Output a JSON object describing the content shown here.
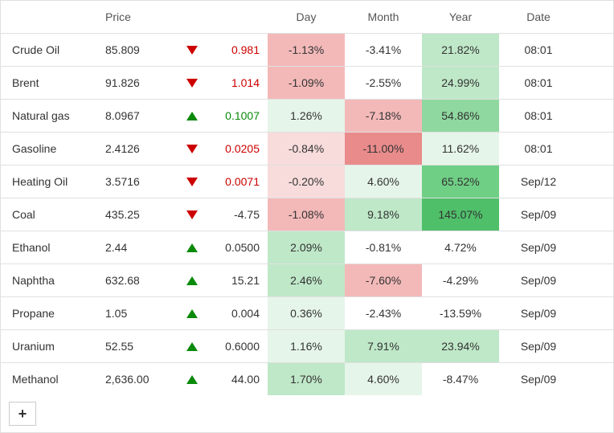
{
  "colors": {
    "green_text": "#0a8a0a",
    "red_text": "#c00",
    "neutral_text": "#333333",
    "border": "#e0e0e0",
    "green_bg_light": "#e6f5e9",
    "green_bg_mid": "#bfe8c8",
    "green_bg_strong": "#8fd89f",
    "green_bg_max": "#4fbf6a",
    "red_bg_light": "#f8dcdc",
    "red_bg_mid": "#f3b9b9",
    "red_bg_strong": "#e98b8b",
    "white": "#ffffff"
  },
  "header": {
    "price": "Price",
    "day": "Day",
    "month": "Month",
    "year": "Year",
    "date": "Date"
  },
  "add_label": "+",
  "rows": [
    {
      "name": "Crude Oil",
      "price": "85.809",
      "dir": "down",
      "change": "0.981",
      "change_color": "#c00",
      "day": "-1.13%",
      "day_bg": "#f3b9b9",
      "month": "-3.41%",
      "month_bg": "#ffffff",
      "year": "21.82%",
      "year_bg": "#bfe8c8",
      "date": "08:01"
    },
    {
      "name": "Brent",
      "price": "91.826",
      "dir": "down",
      "change": "1.014",
      "change_color": "#c00",
      "day": "-1.09%",
      "day_bg": "#f3b9b9",
      "month": "-2.55%",
      "month_bg": "#ffffff",
      "year": "24.99%",
      "year_bg": "#bfe8c8",
      "date": "08:01"
    },
    {
      "name": "Natural gas",
      "price": "8.0967",
      "dir": "up",
      "change": "0.1007",
      "change_color": "#0a8a0a",
      "day": "1.26%",
      "day_bg": "#e6f5e9",
      "month": "-7.18%",
      "month_bg": "#f3b9b9",
      "year": "54.86%",
      "year_bg": "#8fd89f",
      "date": "08:01"
    },
    {
      "name": "Gasoline",
      "price": "2.4126",
      "dir": "down",
      "change": "0.0205",
      "change_color": "#c00",
      "day": "-0.84%",
      "day_bg": "#f8dcdc",
      "month": "-11.00%",
      "month_bg": "#e98b8b",
      "year": "11.62%",
      "year_bg": "#e6f5e9",
      "date": "08:01"
    },
    {
      "name": "Heating Oil",
      "price": "3.5716",
      "dir": "down",
      "change": "0.0071",
      "change_color": "#c00",
      "day": "-0.20%",
      "day_bg": "#f8dcdc",
      "month": "4.60%",
      "month_bg": "#e6f5e9",
      "year": "65.52%",
      "year_bg": "#6fcf85",
      "date": "Sep/12"
    },
    {
      "name": "Coal",
      "price": "435.25",
      "dir": "down",
      "change": "-4.75",
      "change_color": "#333333",
      "day": "-1.08%",
      "day_bg": "#f3b9b9",
      "month": "9.18%",
      "month_bg": "#bfe8c8",
      "year": "145.07%",
      "year_bg": "#4fbf6a",
      "date": "Sep/09"
    },
    {
      "name": "Ethanol",
      "price": "2.44",
      "dir": "up",
      "change": "0.0500",
      "change_color": "#333333",
      "day": "2.09%",
      "day_bg": "#bfe8c8",
      "month": "-0.81%",
      "month_bg": "#ffffff",
      "year": "4.72%",
      "year_bg": "#ffffff",
      "date": "Sep/09"
    },
    {
      "name": "Naphtha",
      "price": "632.68",
      "dir": "up",
      "change": "15.21",
      "change_color": "#333333",
      "day": "2.46%",
      "day_bg": "#bfe8c8",
      "month": "-7.60%",
      "month_bg": "#f3b9b9",
      "year": "-4.29%",
      "year_bg": "#ffffff",
      "date": "Sep/09"
    },
    {
      "name": "Propane",
      "price": "1.05",
      "dir": "up",
      "change": "0.004",
      "change_color": "#333333",
      "day": "0.36%",
      "day_bg": "#e6f5e9",
      "month": "-2.43%",
      "month_bg": "#ffffff",
      "year": "-13.59%",
      "year_bg": "#ffffff",
      "date": "Sep/09"
    },
    {
      "name": "Uranium",
      "price": "52.55",
      "dir": "up",
      "change": "0.6000",
      "change_color": "#333333",
      "day": "1.16%",
      "day_bg": "#e6f5e9",
      "month": "7.91%",
      "month_bg": "#bfe8c8",
      "year": "23.94%",
      "year_bg": "#bfe8c8",
      "date": "Sep/09"
    },
    {
      "name": "Methanol",
      "price": "2,636.00",
      "dir": "up",
      "change": "44.00",
      "change_color": "#333333",
      "day": "1.70%",
      "day_bg": "#bfe8c8",
      "month": "4.60%",
      "month_bg": "#e6f5e9",
      "year": "-8.47%",
      "year_bg": "#ffffff",
      "date": "Sep/09"
    }
  ]
}
